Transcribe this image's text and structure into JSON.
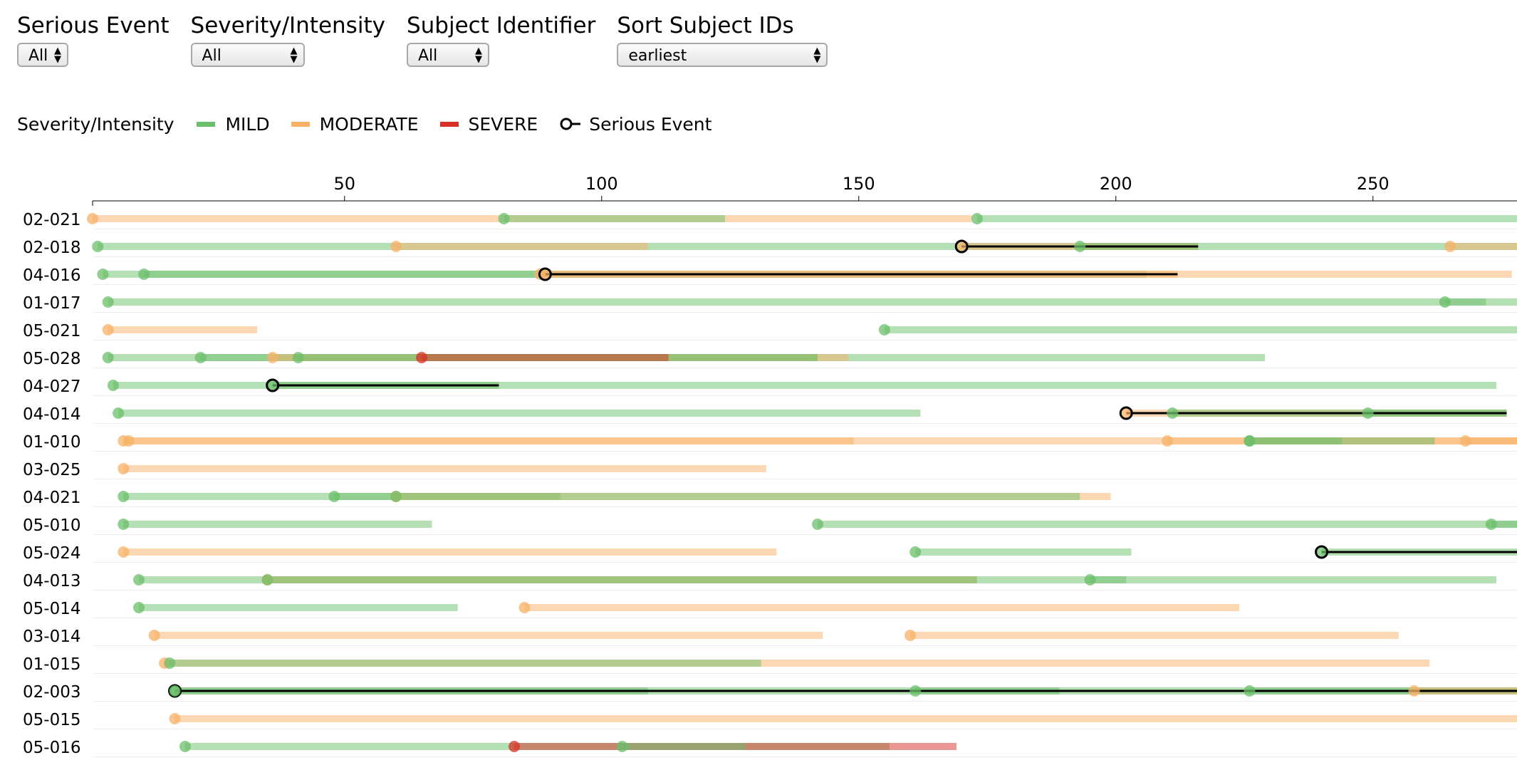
{
  "filters": [
    {
      "label": "Serious Event",
      "value": "All"
    },
    {
      "label": "Severity/Intensity",
      "value": "All"
    },
    {
      "label": "Subject Identifier",
      "value": "All"
    },
    {
      "label": "Sort Subject IDs",
      "value": "earliest"
    }
  ],
  "legend": {
    "title": "Severity/Intensity",
    "items": [
      {
        "label": "MILD",
        "color": "#6bbf6b"
      },
      {
        "label": "MODERATE",
        "color": "#f7b267"
      },
      {
        "label": "SEVERE",
        "color": "#d73027"
      }
    ],
    "serious_label": "Serious Event"
  },
  "chart_data": {
    "type": "timeline",
    "x_ticks": [
      50,
      100,
      150,
      200,
      250
    ],
    "xlim": [
      1,
      278
    ],
    "grid": true,
    "colors": {
      "MILD": "#6bbf6b",
      "MODERATE": "#f7b267",
      "SEVERE": "#d73027",
      "serious": "#000000"
    },
    "subjects": [
      {
        "id": "02-021",
        "events": [
          {
            "sev": "MODERATE",
            "start": 1,
            "end": 172
          },
          {
            "sev": "MILD",
            "start": 81,
            "end": 124
          },
          {
            "sev": "MILD",
            "start": 173,
            "end": 290
          }
        ]
      },
      {
        "id": "02-018",
        "events": [
          {
            "sev": "MILD",
            "start": 2,
            "end": 290
          },
          {
            "sev": "MODERATE",
            "start": 60,
            "end": 109
          },
          {
            "sev": "MODERATE",
            "start": 170,
            "end": 216,
            "serious": true
          },
          {
            "sev": "MILD",
            "start": 193,
            "end": 216
          },
          {
            "sev": "MODERATE",
            "start": 265,
            "end": 290
          }
        ]
      },
      {
        "id": "04-016",
        "events": [
          {
            "sev": "MILD",
            "start": 3,
            "end": 88
          },
          {
            "sev": "MILD",
            "start": 11,
            "end": 206
          },
          {
            "sev": "MODERATE",
            "start": 88,
            "end": 277
          },
          {
            "sev": "MODERATE",
            "start": 89,
            "end": 212,
            "serious": true
          }
        ]
      },
      {
        "id": "01-017",
        "events": [
          {
            "sev": "MILD",
            "start": 4,
            "end": 290
          },
          {
            "sev": "MILD",
            "start": 264,
            "end": 272
          }
        ]
      },
      {
        "id": "05-021",
        "events": [
          {
            "sev": "MODERATE",
            "start": 4,
            "end": 33
          },
          {
            "sev": "MILD",
            "start": 155,
            "end": 290
          }
        ]
      },
      {
        "id": "05-028",
        "events": [
          {
            "sev": "MILD",
            "start": 4,
            "end": 229
          },
          {
            "sev": "MILD",
            "start": 22,
            "end": 142
          },
          {
            "sev": "MODERATE",
            "start": 36,
            "end": 148
          },
          {
            "sev": "MILD",
            "start": 41,
            "end": 142
          },
          {
            "sev": "SEVERE",
            "start": 65,
            "end": 113
          }
        ]
      },
      {
        "id": "04-027",
        "events": [
          {
            "sev": "MILD",
            "start": 5,
            "end": 274
          },
          {
            "sev": "MILD",
            "start": 36,
            "end": 80,
            "serious": true
          }
        ]
      },
      {
        "id": "04-014",
        "events": [
          {
            "sev": "MILD",
            "start": 6,
            "end": 162
          },
          {
            "sev": "MODERATE",
            "start": 202,
            "end": 276,
            "serious": true
          },
          {
            "sev": "MILD",
            "start": 211,
            "end": 276
          },
          {
            "sev": "MILD",
            "start": 249,
            "end": 276
          }
        ]
      },
      {
        "id": "01-010",
        "events": [
          {
            "sev": "MODERATE",
            "start": 7,
            "end": 290
          },
          {
            "sev": "MODERATE",
            "start": 8,
            "end": 149
          },
          {
            "sev": "MODERATE",
            "start": 210,
            "end": 290
          },
          {
            "sev": "MILD",
            "start": 226,
            "end": 244
          },
          {
            "sev": "MILD",
            "start": 226,
            "end": 262
          },
          {
            "sev": "MODERATE",
            "start": 268,
            "end": 290
          }
        ]
      },
      {
        "id": "03-025",
        "events": [
          {
            "sev": "MODERATE",
            "start": 7,
            "end": 132
          }
        ]
      },
      {
        "id": "04-021",
        "events": [
          {
            "sev": "MILD",
            "start": 7,
            "end": 60
          },
          {
            "sev": "MILD",
            "start": 48,
            "end": 92
          },
          {
            "sev": "MODERATE",
            "start": 60,
            "end": 199
          },
          {
            "sev": "MILD",
            "start": 60,
            "end": 193
          }
        ]
      },
      {
        "id": "05-010",
        "events": [
          {
            "sev": "MILD",
            "start": 7,
            "end": 67
          },
          {
            "sev": "MILD",
            "start": 142,
            "end": 290
          },
          {
            "sev": "MILD",
            "start": 273,
            "end": 290
          }
        ]
      },
      {
        "id": "05-024",
        "events": [
          {
            "sev": "MODERATE",
            "start": 7,
            "end": 134
          },
          {
            "sev": "MILD",
            "start": 161,
            "end": 203
          },
          {
            "sev": "MILD",
            "start": 240,
            "end": 290,
            "serious": true
          }
        ]
      },
      {
        "id": "04-013",
        "events": [
          {
            "sev": "MILD",
            "start": 10,
            "end": 274
          },
          {
            "sev": "MODERATE",
            "start": 35,
            "end": 173
          },
          {
            "sev": "MILD",
            "start": 35,
            "end": 173
          },
          {
            "sev": "MILD",
            "start": 195,
            "end": 202
          }
        ]
      },
      {
        "id": "05-014",
        "events": [
          {
            "sev": "MILD",
            "start": 10,
            "end": 72
          },
          {
            "sev": "MODERATE",
            "start": 85,
            "end": 224
          }
        ]
      },
      {
        "id": "03-014",
        "events": [
          {
            "sev": "MODERATE",
            "start": 13,
            "end": 143
          },
          {
            "sev": "MODERATE",
            "start": 160,
            "end": 255
          }
        ]
      },
      {
        "id": "01-015",
        "events": [
          {
            "sev": "MODERATE",
            "start": 15,
            "end": 261
          },
          {
            "sev": "MILD",
            "start": 16,
            "end": 131
          }
        ]
      },
      {
        "id": "02-003",
        "events": [
          {
            "sev": "MILD",
            "start": 17,
            "end": 290,
            "serious": true
          },
          {
            "sev": "MILD",
            "start": 17,
            "end": 109
          },
          {
            "sev": "MILD",
            "start": 161,
            "end": 189
          },
          {
            "sev": "MILD",
            "start": 226,
            "end": 290
          },
          {
            "sev": "MODERATE",
            "start": 258,
            "end": 290
          }
        ]
      },
      {
        "id": "05-015",
        "events": [
          {
            "sev": "MODERATE",
            "start": 17,
            "end": 290
          }
        ]
      },
      {
        "id": "05-016",
        "events": [
          {
            "sev": "MILD",
            "start": 19,
            "end": 156
          },
          {
            "sev": "SEVERE",
            "start": 83,
            "end": 169
          },
          {
            "sev": "MILD",
            "start": 104,
            "end": 128
          }
        ]
      }
    ]
  }
}
